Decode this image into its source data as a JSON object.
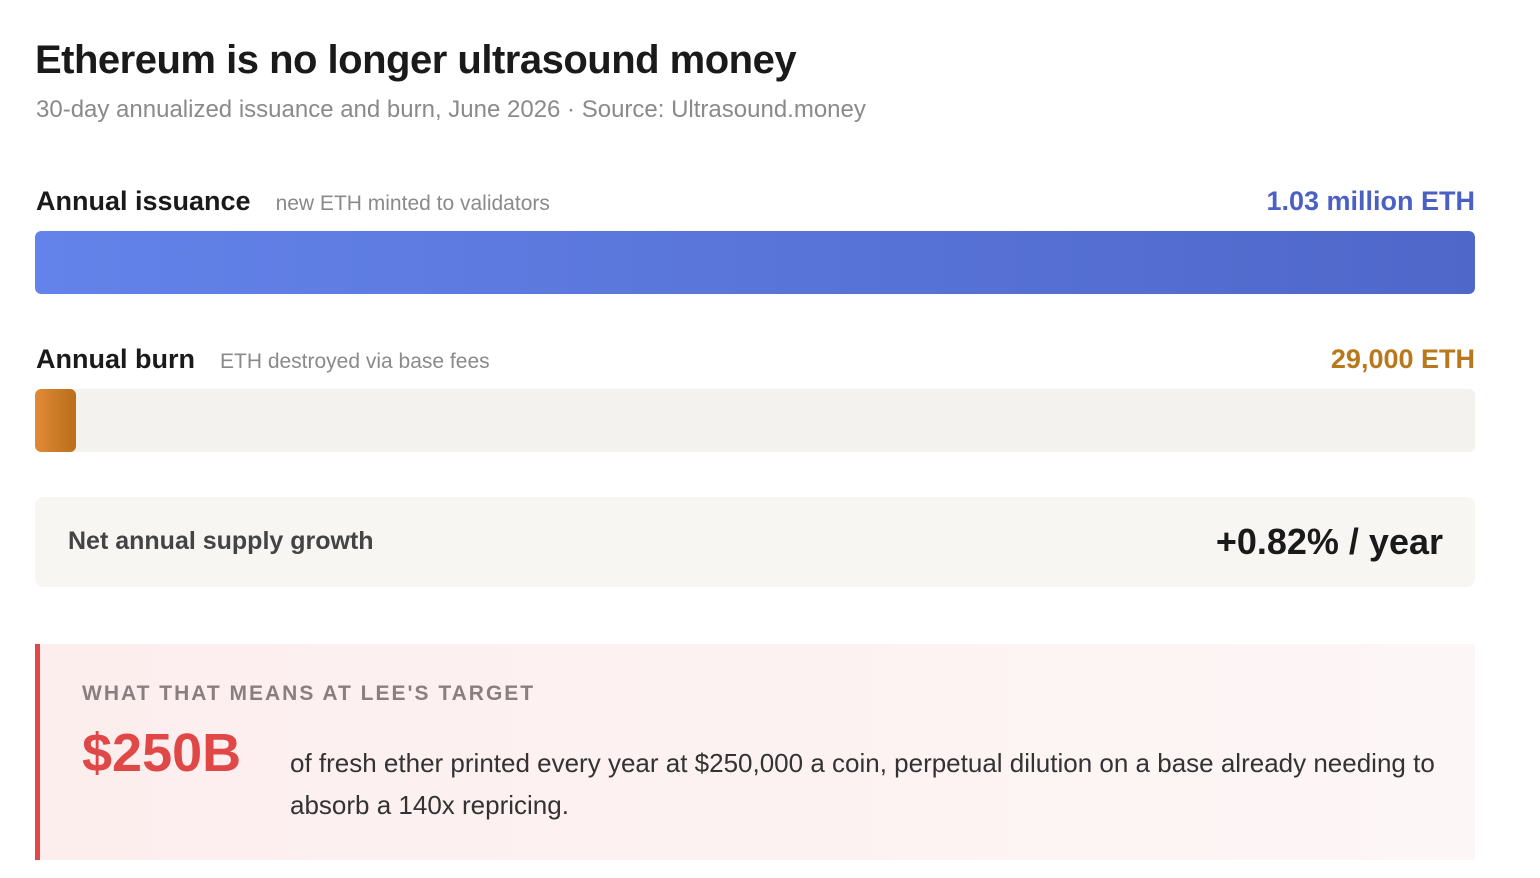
{
  "chart_data": {
    "type": "bar",
    "orientation": "horizontal",
    "title": "Ethereum is no longer ultrasound money",
    "subtitle": "30-day annualized issuance and burn, June 2026 · Source: Ultrasound.money",
    "categories": [
      "Annual issuance",
      "Annual burn"
    ],
    "descriptions": [
      "new ETH minted to validators",
      "ETH destroyed via base fees"
    ],
    "values": [
      1030000,
      29000
    ],
    "value_labels": [
      "1.03 million ETH",
      "29,000 ETH"
    ],
    "colors": [
      [
        "#6383ea",
        "#4f67c9"
      ],
      [
        "#e18a36",
        "#b86f1b"
      ]
    ],
    "label_colors": [
      "#4a60c2",
      "#b8781b"
    ],
    "track_color": "#f3f2ee"
  },
  "summary": {
    "label": "Net annual supply growth",
    "value": "+0.82% / year"
  },
  "callout": {
    "heading": "WHAT THAT MEANS AT LEE'S TARGET",
    "figure": "$250B",
    "text": "of fresh ether printed every year at $250,000 a coin, perpetual dilution on a base already needing to absorb a 140x repricing."
  }
}
